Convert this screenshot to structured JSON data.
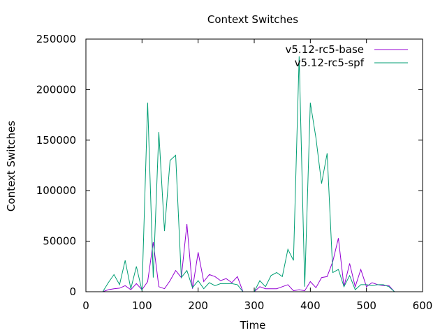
{
  "chart_data": {
    "type": "line",
    "title": "Context Switches",
    "xlabel": "Time",
    "ylabel": "Context Switches",
    "xlim": [
      0,
      600
    ],
    "ylim": [
      0,
      250000
    ],
    "xticks": [
      0,
      100,
      200,
      300,
      400,
      500,
      600
    ],
    "yticks": [
      0,
      50000,
      100000,
      150000,
      200000,
      250000
    ],
    "grid": false,
    "legend_position": "top-right",
    "series": [
      {
        "name": "v5.12-rc5-base",
        "color": "#9400d3",
        "x": [
          10,
          20,
          30,
          40,
          50,
          60,
          70,
          80,
          90,
          100,
          110,
          120,
          130,
          140,
          150,
          160,
          170,
          180,
          190,
          200,
          210,
          220,
          230,
          240,
          250,
          260,
          270,
          280,
          290,
          300,
          310,
          320,
          330,
          340,
          350,
          360,
          370,
          380,
          390,
          400,
          410,
          420,
          430,
          440,
          450,
          460,
          470,
          480,
          490,
          500,
          510,
          520,
          530,
          540,
          550
        ],
        "y": [
          0,
          0,
          0,
          2000,
          3000,
          3500,
          6000,
          2000,
          8000,
          2000,
          10000,
          49000,
          5000,
          3000,
          11000,
          21000,
          14000,
          67000,
          3000,
          39000,
          10000,
          17000,
          15000,
          11000,
          13000,
          9000,
          15000,
          0,
          0,
          0,
          5000,
          3000,
          3000,
          3000,
          5000,
          7000,
          1000,
          2000,
          1000,
          10000,
          4000,
          14000,
          15000,
          30000,
          53000,
          5000,
          28000,
          5000,
          22000,
          5000,
          9000,
          7000,
          6000,
          6000,
          0
        ]
      },
      {
        "name": "v5.12-rc5-spf",
        "color": "#009e73",
        "x": [
          10,
          20,
          30,
          40,
          50,
          60,
          70,
          80,
          90,
          100,
          110,
          120,
          130,
          140,
          150,
          160,
          170,
          180,
          190,
          200,
          210,
          220,
          230,
          240,
          250,
          260,
          270,
          280,
          290,
          300,
          310,
          320,
          330,
          340,
          350,
          360,
          370,
          380,
          390,
          400,
          410,
          420,
          430,
          440,
          450,
          460,
          470,
          480,
          490,
          500,
          510,
          520,
          530,
          540,
          550
        ],
        "y": [
          0,
          0,
          0,
          9000,
          17000,
          7000,
          31000,
          3000,
          25000,
          1000,
          187000,
          14000,
          158000,
          60000,
          130000,
          135000,
          14000,
          21000,
          4000,
          11000,
          3000,
          9000,
          6000,
          8000,
          8000,
          8000,
          7000,
          0,
          0,
          0,
          11000,
          5000,
          16000,
          19000,
          15000,
          42000,
          31000,
          233000,
          5000,
          187000,
          152000,
          107000,
          137000,
          19000,
          22000,
          5000,
          16000,
          2000,
          7000,
          7000,
          6000,
          7000,
          7000,
          5000,
          0
        ]
      }
    ]
  }
}
